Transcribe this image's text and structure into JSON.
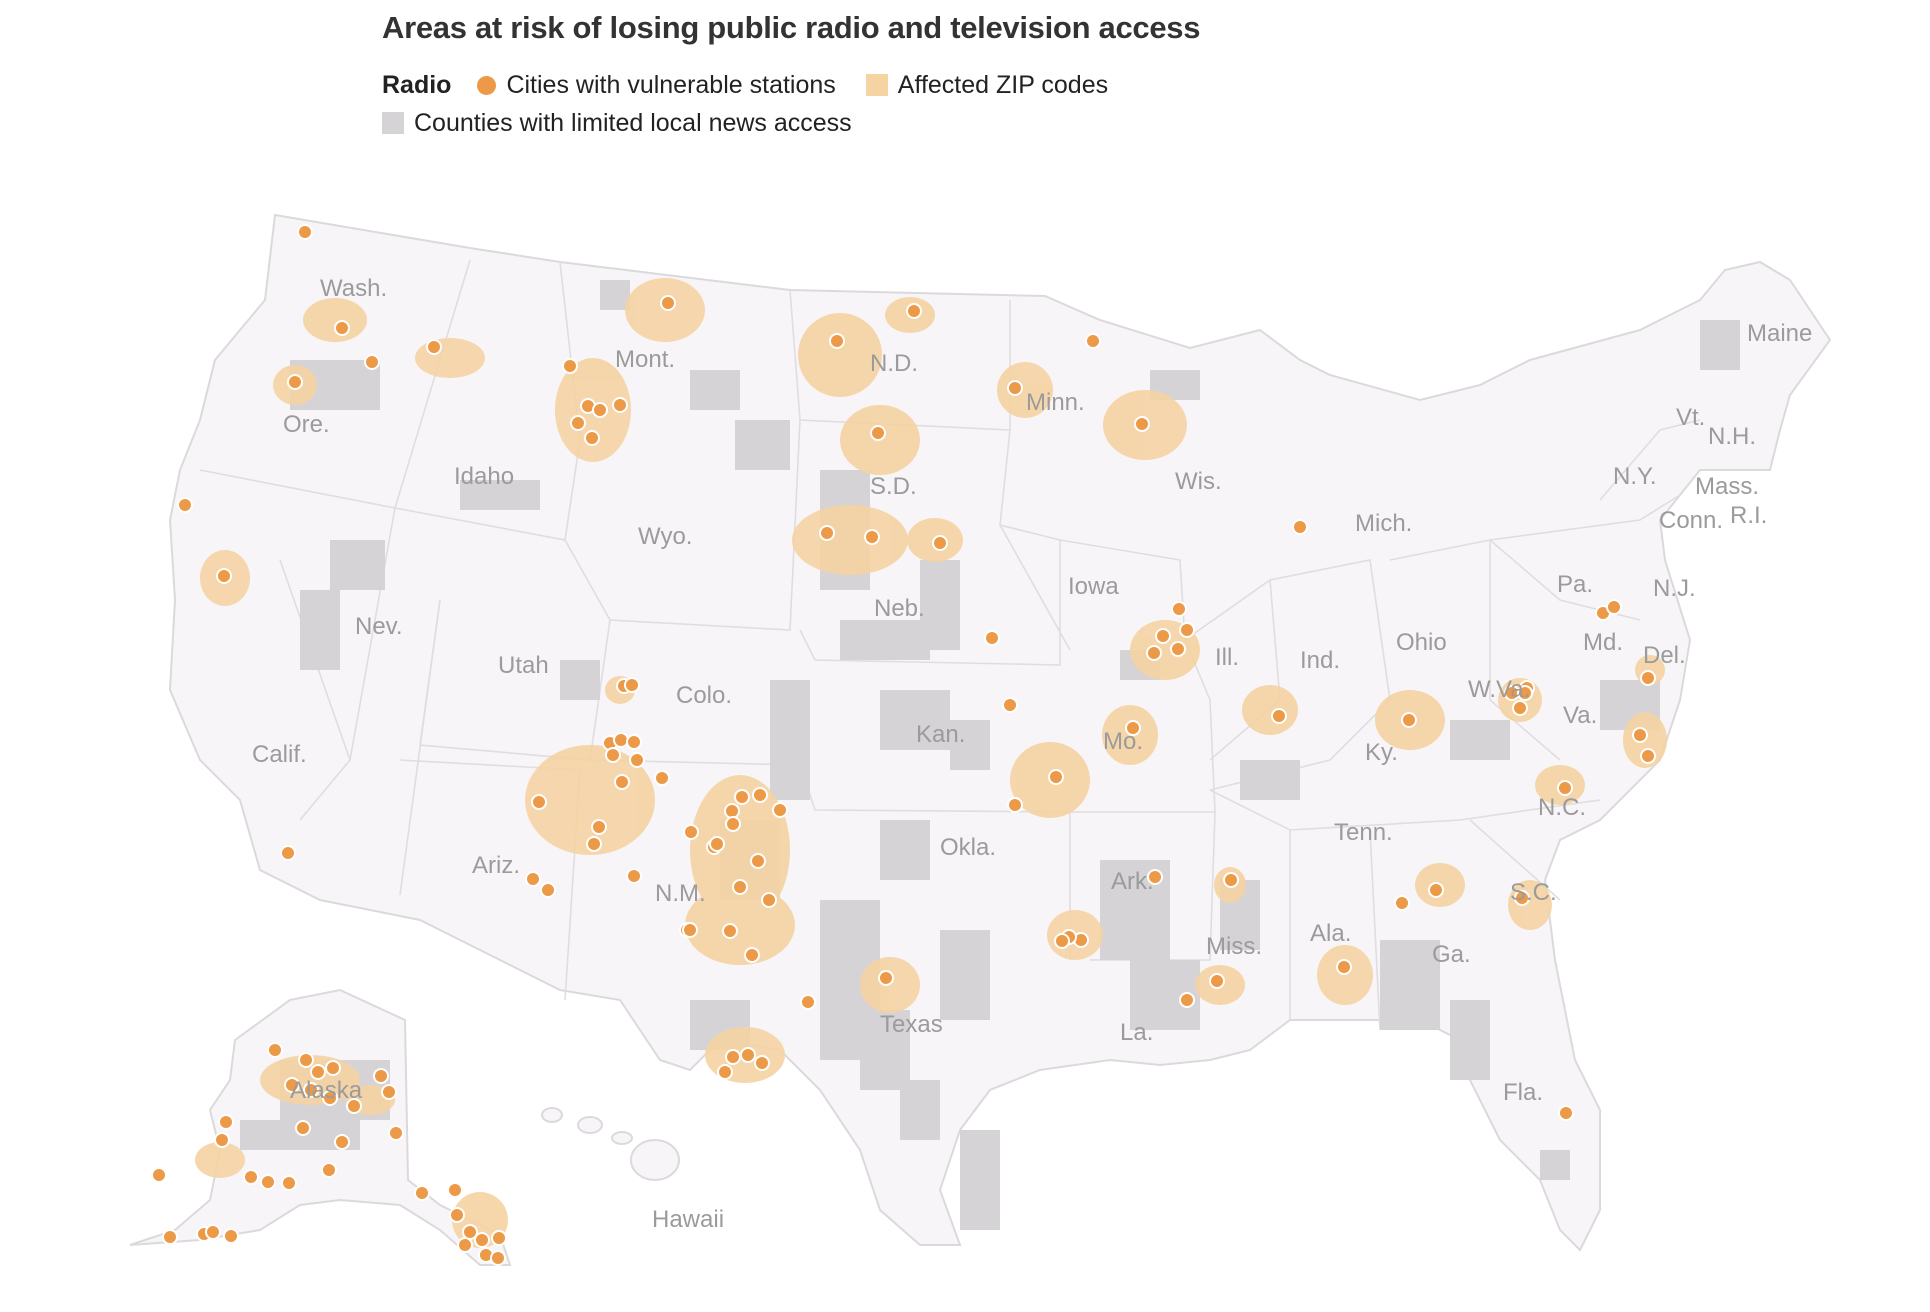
{
  "title": "Areas at risk of losing public radio and television access",
  "legend": {
    "label": "Radio",
    "items": [
      {
        "name": "Cities with vulnerable stations",
        "color": "#ec9a47",
        "shape": "circle"
      },
      {
        "name": "Affected ZIP codes",
        "color": "#f5d3a3",
        "shape": "square"
      },
      {
        "name": "Counties with limited local news access",
        "color": "#d6d3d6",
        "shape": "square"
      }
    ]
  },
  "colors": {
    "land": "#f8f5f8",
    "border": "#dcd9dc",
    "zip": "#f5d3a3",
    "county": "#d6d3d6",
    "city": "#ec9a47"
  },
  "state_labels": [
    "Wash.",
    "Ore.",
    "Calif.",
    "Idaho",
    "Nev.",
    "Mont.",
    "Wyo.",
    "Utah",
    "Colo.",
    "Ariz.",
    "N.M.",
    "N.D.",
    "S.D.",
    "Neb.",
    "Kan.",
    "Okla.",
    "Texas",
    "Minn.",
    "Iowa",
    "Mo.",
    "Ark.",
    "La.",
    "Wis.",
    "Ill.",
    "Mich.",
    "Ind.",
    "Ohio",
    "Ky.",
    "Tenn.",
    "Miss.",
    "Ala.",
    "Ga.",
    "Fla.",
    "S.C.",
    "N.C.",
    "Va.",
    "W.Va.",
    "Md.",
    "Del.",
    "N.J.",
    "Pa.",
    "N.Y.",
    "Conn.",
    "R.I.",
    "Mass.",
    "Vt.",
    "N.H.",
    "Maine",
    "Alaska",
    "Hawaii"
  ]
}
